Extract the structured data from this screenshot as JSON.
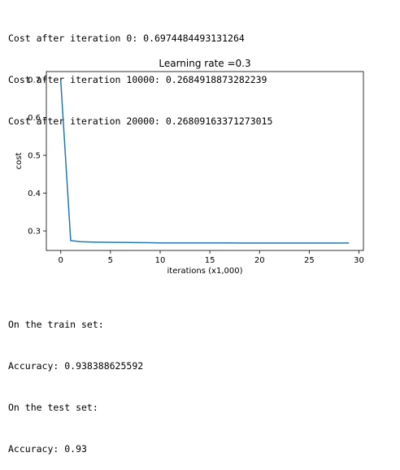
{
  "output_top": {
    "lines": [
      "Cost after iteration 0: 0.6974484493131264",
      "Cost after iteration 10000: 0.2684918873282239",
      "Cost after iteration 20000: 0.26809163371273015"
    ]
  },
  "output_bottom": {
    "lines": [
      "On the train set:",
      "Accuracy: 0.938388625592",
      "On the test set:",
      "Accuracy: 0.93"
    ]
  },
  "chart_data": {
    "type": "line",
    "title": "Learning rate =0.3",
    "xlabel": "iterations (x1,000)",
    "ylabel": "cost",
    "xlim": [
      -1.45,
      30.45
    ],
    "ylim": [
      0.2485,
      0.7215
    ],
    "xticks": [
      0,
      5,
      10,
      15,
      20,
      25,
      30
    ],
    "yticks": [
      0.3,
      0.4,
      0.5,
      0.6,
      0.7
    ],
    "ytick_labels": [
      "0.3",
      "0.4",
      "0.5",
      "0.6",
      "0.7"
    ],
    "line_color": "#1f77b4",
    "grid": false,
    "series": [
      {
        "x": [
          0,
          1,
          2,
          3,
          4,
          5,
          6,
          7,
          8,
          9,
          10,
          11,
          12,
          13,
          14,
          15,
          16,
          17,
          18,
          19,
          20,
          21,
          22,
          23,
          24,
          25,
          26,
          27,
          28,
          29
        ],
        "values": [
          0.6974,
          0.2747,
          0.2715,
          0.2708,
          0.2703,
          0.27,
          0.2697,
          0.2694,
          0.2692,
          0.269,
          0.2685,
          0.2684,
          0.2683,
          0.2683,
          0.2683,
          0.2683,
          0.2683,
          0.2683,
          0.2682,
          0.2682,
          0.2681,
          0.2681,
          0.2681,
          0.268,
          0.268,
          0.268,
          0.268,
          0.268,
          0.268,
          0.268
        ]
      }
    ]
  }
}
